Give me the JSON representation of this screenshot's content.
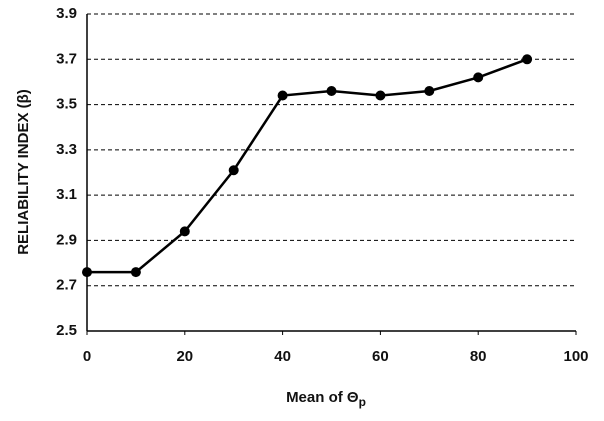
{
  "chart_data": {
    "type": "line",
    "ylabel": "RELIABILITY  INDEX (β)",
    "xlabel": "Mean of Θ",
    "xlabel_subscript": "p",
    "x": [
      0,
      10,
      20,
      30,
      40,
      50,
      60,
      70,
      80,
      90
    ],
    "series": [
      {
        "color": "#000000",
        "values": [
          2.76,
          2.76,
          2.94,
          3.21,
          3.54,
          3.56,
          3.54,
          3.56,
          3.62,
          3.7
        ]
      }
    ],
    "xlim": [
      0,
      100
    ],
    "xticks": [
      0,
      20,
      40,
      60,
      80,
      100
    ],
    "ylim": [
      2.5,
      3.9
    ],
    "yticks": [
      2.5,
      2.7,
      2.9,
      3.1,
      3.3,
      3.5,
      3.7,
      3.9
    ],
    "grid": true
  }
}
